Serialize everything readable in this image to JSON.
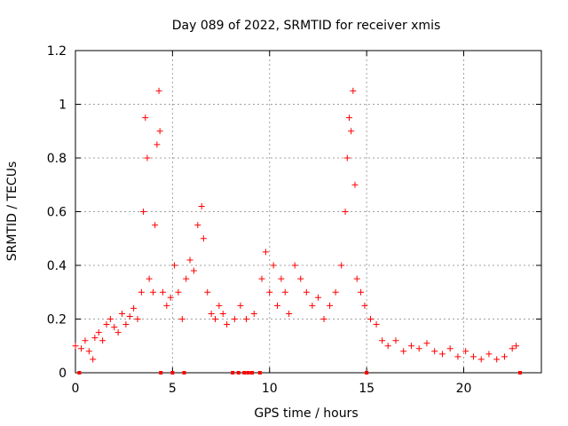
{
  "chart_data": {
    "type": "scatter",
    "title": "Day 089 of 2022, SRMTID for receiver xmis",
    "xlabel": "GPS time / hours",
    "ylabel": "SRMTID / TECUs",
    "xlim": [
      0,
      24
    ],
    "ylim": [
      0,
      1.2
    ],
    "grid": true,
    "x_ticks": [
      0,
      5,
      10,
      15,
      20
    ],
    "x_tick_labels": [
      "0",
      "5",
      "10",
      "15",
      "20"
    ],
    "y_ticks": [
      0,
      0.2,
      0.4,
      0.6,
      0.8,
      1.0,
      1.2
    ],
    "y_tick_labels": [
      "0",
      "0.2",
      "0.4",
      "0.6",
      "0.8",
      "1",
      "1.2"
    ],
    "marker": "+",
    "color": "#ff0000",
    "series": [
      {
        "name": "SRMTID",
        "points": [
          [
            0.0,
            0.1
          ],
          [
            0.3,
            0.09
          ],
          [
            0.5,
            0.12
          ],
          [
            0.7,
            0.08
          ],
          [
            0.9,
            0.05
          ],
          [
            1.0,
            0.13
          ],
          [
            1.2,
            0.15
          ],
          [
            1.4,
            0.12
          ],
          [
            1.6,
            0.18
          ],
          [
            1.8,
            0.2
          ],
          [
            2.0,
            0.17
          ],
          [
            2.2,
            0.15
          ],
          [
            2.4,
            0.22
          ],
          [
            2.6,
            0.18
          ],
          [
            2.8,
            0.21
          ],
          [
            3.0,
            0.24
          ],
          [
            3.2,
            0.2
          ],
          [
            3.4,
            0.3
          ],
          [
            3.5,
            0.6
          ],
          [
            3.6,
            0.95
          ],
          [
            3.7,
            0.8
          ],
          [
            3.8,
            0.35
          ],
          [
            4.0,
            0.3
          ],
          [
            4.1,
            0.55
          ],
          [
            4.2,
            0.85
          ],
          [
            4.3,
            1.05
          ],
          [
            4.35,
            0.9
          ],
          [
            4.5,
            0.3
          ],
          [
            4.7,
            0.25
          ],
          [
            4.9,
            0.28
          ],
          [
            5.1,
            0.4
          ],
          [
            5.3,
            0.3
          ],
          [
            5.5,
            0.2
          ],
          [
            5.7,
            0.35
          ],
          [
            5.9,
            0.42
          ],
          [
            6.1,
            0.38
          ],
          [
            6.3,
            0.55
          ],
          [
            6.5,
            0.62
          ],
          [
            6.6,
            0.5
          ],
          [
            6.8,
            0.3
          ],
          [
            7.0,
            0.22
          ],
          [
            7.2,
            0.2
          ],
          [
            7.4,
            0.25
          ],
          [
            7.6,
            0.22
          ],
          [
            7.8,
            0.18
          ],
          [
            8.2,
            0.2
          ],
          [
            8.5,
            0.25
          ],
          [
            8.8,
            0.2
          ],
          [
            9.2,
            0.22
          ],
          [
            9.6,
            0.35
          ],
          [
            9.8,
            0.45
          ],
          [
            10.0,
            0.3
          ],
          [
            10.2,
            0.4
          ],
          [
            10.4,
            0.25
          ],
          [
            10.6,
            0.35
          ],
          [
            10.8,
            0.3
          ],
          [
            11.0,
            0.22
          ],
          [
            11.3,
            0.4
          ],
          [
            11.6,
            0.35
          ],
          [
            11.9,
            0.3
          ],
          [
            12.2,
            0.25
          ],
          [
            12.5,
            0.28
          ],
          [
            12.8,
            0.2
          ],
          [
            13.1,
            0.25
          ],
          [
            13.4,
            0.3
          ],
          [
            13.7,
            0.4
          ],
          [
            13.9,
            0.6
          ],
          [
            14.0,
            0.8
          ],
          [
            14.1,
            0.95
          ],
          [
            14.2,
            0.9
          ],
          [
            14.3,
            1.05
          ],
          [
            14.4,
            0.7
          ],
          [
            14.5,
            0.35
          ],
          [
            14.7,
            0.3
          ],
          [
            14.9,
            0.25
          ],
          [
            15.2,
            0.2
          ],
          [
            15.5,
            0.18
          ],
          [
            15.8,
            0.12
          ],
          [
            16.1,
            0.1
          ],
          [
            16.5,
            0.12
          ],
          [
            16.9,
            0.08
          ],
          [
            17.3,
            0.1
          ],
          [
            17.7,
            0.09
          ],
          [
            18.1,
            0.11
          ],
          [
            18.5,
            0.08
          ],
          [
            18.9,
            0.07
          ],
          [
            19.3,
            0.09
          ],
          [
            19.7,
            0.06
          ],
          [
            20.1,
            0.08
          ],
          [
            20.5,
            0.06
          ],
          [
            20.9,
            0.05
          ],
          [
            21.3,
            0.07
          ],
          [
            21.7,
            0.05
          ],
          [
            22.1,
            0.06
          ],
          [
            22.5,
            0.09
          ],
          [
            22.7,
            0.1
          ]
        ]
      }
    ],
    "gap_markers_x": [
      0.2,
      4.4,
      5.0,
      5.6,
      8.1,
      8.4,
      8.7,
      8.9,
      9.1,
      9.5,
      15.0,
      22.9
    ]
  }
}
